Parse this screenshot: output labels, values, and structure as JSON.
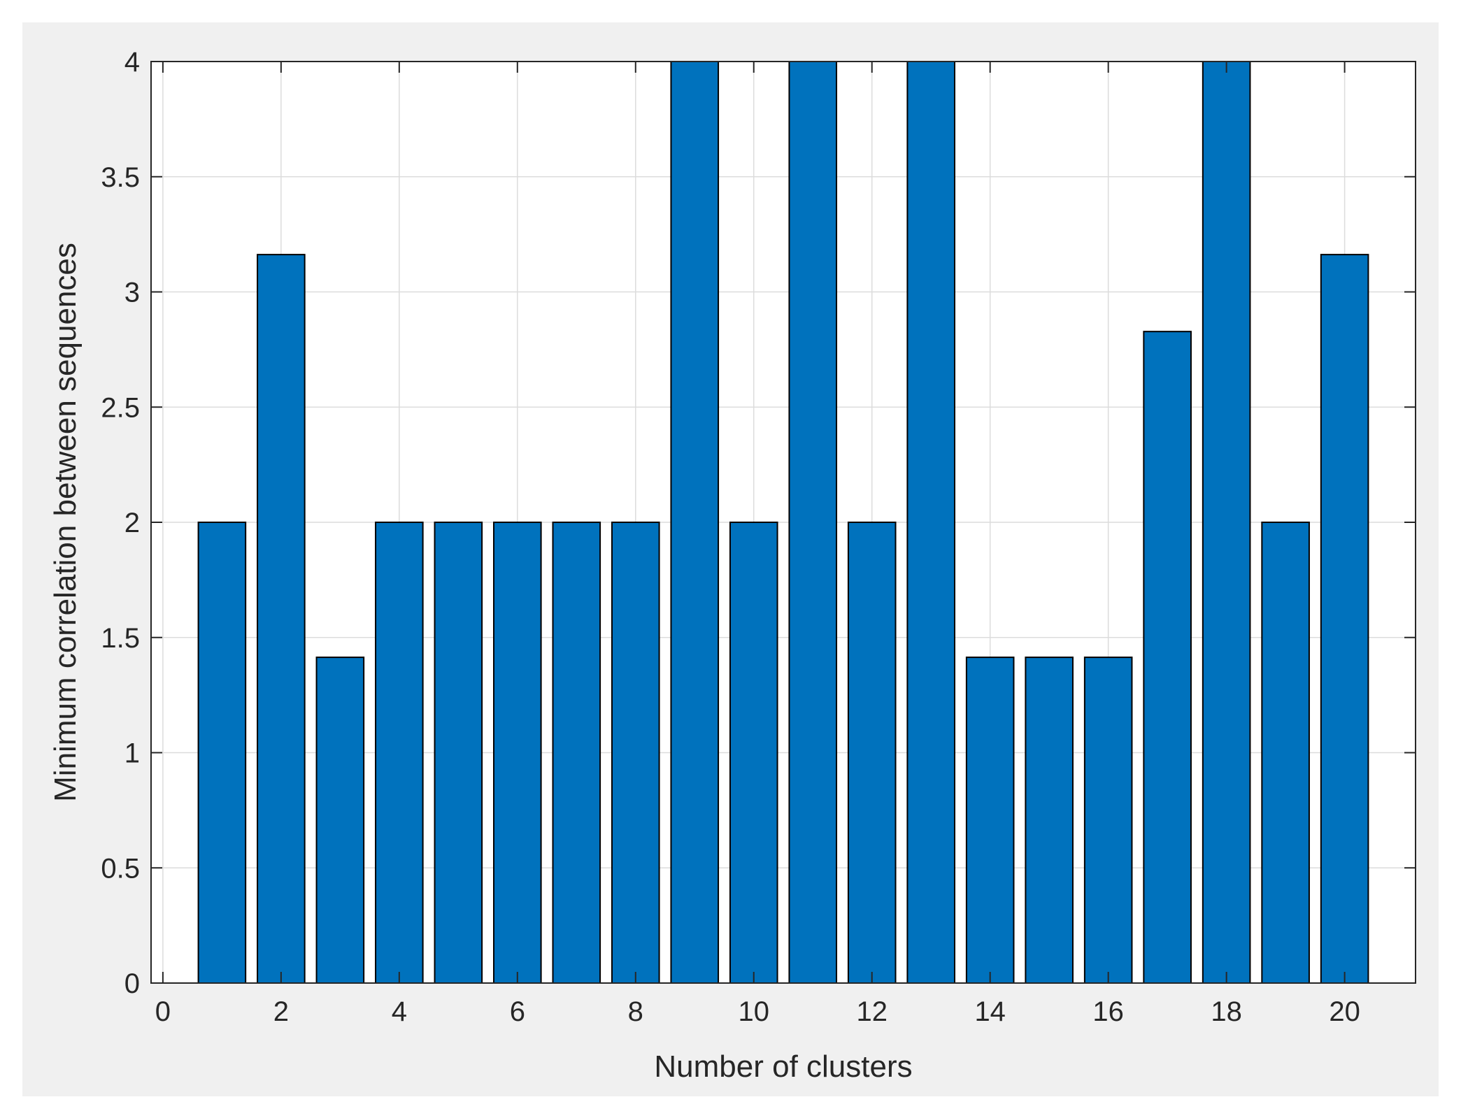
{
  "chart_data": {
    "type": "bar",
    "xlabel": "Number of clusters",
    "ylabel": "Minimum correlation between sequences",
    "x": [
      1,
      2,
      3,
      4,
      5,
      6,
      7,
      8,
      9,
      10,
      11,
      12,
      13,
      14,
      15,
      16,
      17,
      18,
      19,
      20
    ],
    "values": [
      2,
      3.162,
      1.414,
      2,
      2,
      2,
      2,
      2,
      4,
      2,
      4,
      2,
      4,
      1.414,
      1.414,
      1.414,
      2.828,
      4,
      2,
      3.162
    ],
    "xlim": [
      -0.2,
      21.2
    ],
    "ylim": [
      0,
      4
    ],
    "xticks": [
      0,
      2,
      4,
      6,
      8,
      10,
      12,
      14,
      16,
      18,
      20
    ],
    "yticks": [
      0,
      0.5,
      1,
      1.5,
      2,
      2.5,
      3,
      3.5,
      4
    ],
    "xtick_labels": [
      "0",
      "2",
      "4",
      "6",
      "8",
      "10",
      "12",
      "14",
      "16",
      "18",
      "20"
    ],
    "ytick_labels": [
      "0",
      "0.5",
      "1",
      "1.5",
      "2",
      "2.5",
      "3",
      "3.5",
      "4"
    ],
    "grid": true,
    "colors": {
      "bar_fill": "#0072BD",
      "bar_edge": "#000000",
      "figure_background": "#F0F0F0",
      "axes_background": "#FFFFFF",
      "grid": "#DCDCDC",
      "axis": "#262626"
    }
  }
}
